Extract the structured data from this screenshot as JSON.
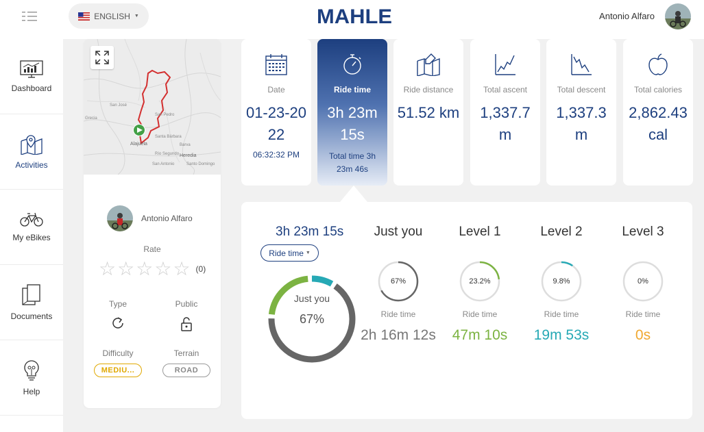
{
  "header": {
    "language": "ENGLISH",
    "logo": "MAHLE",
    "user_name": "Antonio Alfaro"
  },
  "sidebar": {
    "items": [
      {
        "label": "Dashboard",
        "icon": "dashboard-icon"
      },
      {
        "label": "Activities",
        "icon": "map-pin-icon"
      },
      {
        "label": "My eBikes",
        "icon": "bike-icon"
      },
      {
        "label": "Documents",
        "icon": "documents-icon"
      },
      {
        "label": "Help",
        "icon": "lightbulb-icon"
      }
    ]
  },
  "map": {
    "labels": [
      "San José",
      "Grecia",
      "San Pedro",
      "Alajuela",
      "Santa Bárbara",
      "Barva",
      "Heredia",
      "Río Segundo",
      "San Antonio",
      "Santo Domingo"
    ]
  },
  "activity": {
    "owner": "Antonio Alfaro",
    "rate_label": "Rate",
    "rating": 0,
    "rate_count": "(0)",
    "type_label": "Type",
    "public_label": "Public",
    "difficulty_label": "Difficulty",
    "terrain_label": "Terrain",
    "difficulty": "MEDIU...",
    "terrain": "ROAD"
  },
  "stats": [
    {
      "label": "Date",
      "value": "01-23-2022",
      "sub": "06:32:32 PM",
      "icon": "calendar-icon"
    },
    {
      "label": "Ride time",
      "value": "3h 23m 15s",
      "sub": "Total time 3h 23m 46s",
      "icon": "stopwatch-icon"
    },
    {
      "label": "Ride distance",
      "value": "51.52 km",
      "sub": "",
      "icon": "route-map-icon"
    },
    {
      "label": "Total ascent",
      "value": "1,337.7 m",
      "sub": "",
      "icon": "ascent-chart-icon"
    },
    {
      "label": "Total descent",
      "value": "1,337.3 m",
      "sub": "",
      "icon": "descent-chart-icon"
    },
    {
      "label": "Total calories",
      "value": "2,862.43 cal",
      "sub": "",
      "icon": "apple-icon"
    }
  ],
  "detail": {
    "total_time": "3h 23m 15s",
    "dropdown": "Ride time",
    "donut_label": "Just you",
    "donut_pct": "67%",
    "donut_segments": {
      "just_you": 0.67,
      "level1": 0.232,
      "level2": 0.098
    },
    "levels": [
      {
        "title": "Just you",
        "pct": "67%",
        "fraction": 0.67,
        "sub": "Ride time",
        "value": "2h 16m 12s",
        "color": "#666666",
        "value_color": "#777777"
      },
      {
        "title": "Level 1",
        "pct": "23.2%",
        "fraction": 0.232,
        "sub": "Ride time",
        "value": "47m 10s",
        "color": "#7cb342",
        "value_color": "#7cb342"
      },
      {
        "title": "Level 2",
        "pct": "9.8%",
        "fraction": 0.098,
        "sub": "Ride time",
        "value": "19m 53s",
        "color": "#26a9b5",
        "value_color": "#26a9b5"
      },
      {
        "title": "Level 3",
        "pct": "0%",
        "fraction": 0,
        "sub": "Ride time",
        "value": "0s",
        "color": "#f0a830",
        "value_color": "#f0a830"
      }
    ]
  },
  "colors": {
    "brand": "#1d3f7f",
    "accent_green": "#7cb342",
    "accent_teal": "#26a9b5",
    "difficulty": "#e0a800"
  }
}
